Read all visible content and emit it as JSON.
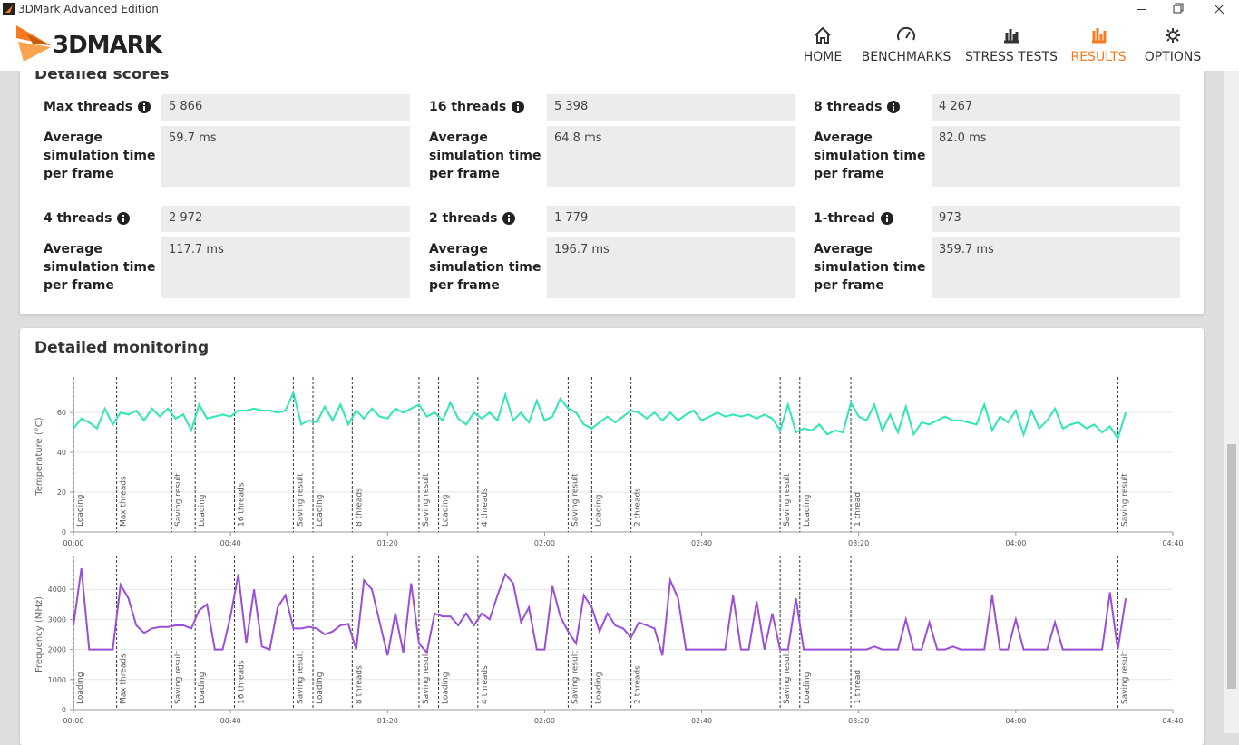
{
  "window": {
    "title": "3DMark Advanced Edition"
  },
  "logo": "3DMARK",
  "nav": [
    "HOME",
    "BENCHMARKS",
    "STRESS TESTS",
    "RESULTS",
    "OPTIONS"
  ],
  "scores": {
    "title": "Detailed scores",
    "items": [
      {
        "label": "Max threads",
        "score": "5 866",
        "time_label": "Average simulation time per frame",
        "time": "59.7 ms"
      },
      {
        "label": "16 threads",
        "score": "5 398",
        "time_label": "Average simulation time per frame",
        "time": "64.8 ms"
      },
      {
        "label": "8 threads",
        "score": "4 267",
        "time_label": "Average simulation time per frame",
        "time": "82.0 ms"
      },
      {
        "label": "4 threads",
        "score": "2 972",
        "time_label": "Average simulation time per frame",
        "time": "117.7 ms"
      },
      {
        "label": "2 threads",
        "score": "1 779",
        "time_label": "Average simulation time per frame",
        "time": "196.7 ms"
      },
      {
        "label": "1-thread",
        "score": "973",
        "time_label": "Average simulation time per frame",
        "time": "359.7 ms"
      }
    ]
  },
  "monitoring_title": "Detailed monitoring",
  "chart_data": [
    {
      "type": "line",
      "y_label": "Temperature (°C)",
      "color": "#2ee6b6",
      "x": [
        0,
        2,
        4,
        6,
        8,
        10,
        12,
        14,
        16,
        18,
        20,
        22,
        24,
        26,
        28,
        30,
        32,
        34,
        36,
        38,
        40,
        42,
        44,
        46,
        48,
        50,
        52,
        54,
        56,
        58,
        60,
        62,
        64,
        66,
        68,
        70,
        72,
        74,
        76,
        78,
        80,
        82,
        84,
        86,
        88,
        90,
        92,
        94,
        96,
        98,
        100,
        102,
        104,
        106,
        108,
        110,
        112,
        114,
        116,
        118,
        120,
        122,
        124,
        126,
        128,
        130,
        132,
        134,
        136,
        138,
        140,
        142,
        144,
        146,
        148,
        150,
        152,
        154,
        156,
        158,
        160,
        162,
        164,
        166,
        168,
        170,
        172,
        174,
        176,
        178,
        180,
        182,
        184,
        186,
        188,
        190,
        192,
        194,
        196,
        198,
        200,
        202,
        204,
        206,
        208,
        210,
        212,
        214,
        216,
        218,
        220,
        222,
        224,
        226,
        228,
        230,
        232,
        234,
        236,
        238,
        240,
        242,
        244,
        246,
        248,
        250,
        252,
        254,
        256,
        258,
        260,
        262,
        264,
        266,
        268
      ],
      "values": [
        52,
        57,
        55,
        52,
        62,
        54,
        60,
        59,
        61,
        56,
        62,
        58,
        62,
        57,
        59,
        51,
        64,
        57,
        58,
        59,
        58,
        61,
        61,
        62,
        61,
        61,
        60,
        61,
        70,
        54,
        56,
        55,
        63,
        56,
        64,
        54,
        61,
        57,
        62,
        58,
        57,
        62,
        60,
        62,
        64,
        58,
        60,
        56,
        65,
        57,
        54,
        60,
        57,
        60,
        56,
        69,
        56,
        60,
        55,
        66,
        56,
        58,
        67,
        62,
        60,
        54,
        52,
        55,
        58,
        55,
        58,
        61,
        60,
        57,
        60,
        56,
        60,
        56,
        59,
        61,
        56,
        58,
        60,
        58,
        59,
        58,
        59,
        57,
        59,
        57,
        51,
        64,
        50,
        52,
        51,
        54,
        49,
        51,
        50,
        65,
        58,
        56,
        64,
        51,
        59,
        50,
        63,
        49,
        55,
        54,
        56,
        58,
        56,
        56,
        55,
        54,
        64,
        51,
        58,
        55,
        61,
        49,
        61,
        52,
        56,
        62,
        52,
        54,
        55,
        52,
        54,
        50,
        53,
        47,
        60
      ],
      "xlim": [
        0,
        280
      ],
      "xticks": [
        {
          "value": 0,
          "label": "00:00"
        },
        {
          "value": 40,
          "label": "00:40"
        },
        {
          "value": 80,
          "label": "01:20"
        },
        {
          "value": 120,
          "label": "02:00"
        },
        {
          "value": 160,
          "label": "02:40"
        },
        {
          "value": 200,
          "label": "03:20"
        },
        {
          "value": 240,
          "label": "04:00"
        },
        {
          "value": 280,
          "label": "04:40"
        }
      ],
      "ylim": [
        0,
        76
      ],
      "yticks": [
        0,
        20,
        40,
        60
      ],
      "grid": true,
      "markers": [
        {
          "x": 0,
          "label": "Loading"
        },
        {
          "x": 11,
          "label": "Max threads"
        },
        {
          "x": 25,
          "label": "Saving result"
        },
        {
          "x": 31,
          "label": "Loading"
        },
        {
          "x": 41,
          "label": "16 threads"
        },
        {
          "x": 56,
          "label": "Saving result"
        },
        {
          "x": 61,
          "label": "Loading"
        },
        {
          "x": 71,
          "label": "8 threads"
        },
        {
          "x": 88,
          "label": "Saving result"
        },
        {
          "x": 93,
          "label": "Loading"
        },
        {
          "x": 103,
          "label": "4 threads"
        },
        {
          "x": 126,
          "label": "Saving result"
        },
        {
          "x": 132,
          "label": "Loading"
        },
        {
          "x": 142,
          "label": "2 threads"
        },
        {
          "x": 180,
          "label": "Saving result"
        },
        {
          "x": 185,
          "label": "Loading"
        },
        {
          "x": 198,
          "label": "1 thread"
        },
        {
          "x": 266,
          "label": "Saving result"
        }
      ]
    },
    {
      "type": "line",
      "y_label": "Frequency (MHz)",
      "color": "#9a4fd8",
      "x": [
        0,
        2,
        4,
        6,
        8,
        10,
        12,
        14,
        16,
        18,
        20,
        22,
        24,
        26,
        28,
        30,
        32,
        34,
        36,
        38,
        40,
        42,
        44,
        46,
        48,
        50,
        52,
        54,
        56,
        58,
        60,
        62,
        64,
        66,
        68,
        70,
        72,
        74,
        76,
        78,
        80,
        82,
        84,
        86,
        88,
        90,
        92,
        94,
        96,
        98,
        100,
        102,
        104,
        106,
        108,
        110,
        112,
        114,
        116,
        118,
        120,
        122,
        124,
        126,
        128,
        130,
        132,
        134,
        136,
        138,
        140,
        142,
        144,
        146,
        148,
        150,
        152,
        154,
        156,
        158,
        160,
        162,
        164,
        166,
        168,
        170,
        172,
        174,
        176,
        178,
        180,
        182,
        184,
        186,
        188,
        190,
        192,
        194,
        196,
        198,
        200,
        202,
        204,
        206,
        208,
        210,
        212,
        214,
        216,
        218,
        220,
        222,
        224,
        226,
        228,
        230,
        232,
        234,
        236,
        238,
        240,
        242,
        244,
        246,
        248,
        250,
        252,
        254,
        256,
        258,
        260,
        262,
        264,
        266,
        268
      ],
      "values": [
        2800,
        4700,
        2000,
        2000,
        2000,
        2000,
        4150,
        3700,
        2800,
        2550,
        2700,
        2750,
        2750,
        2800,
        2800,
        2700,
        3300,
        3500,
        2000,
        2000,
        3100,
        4500,
        2200,
        4000,
        2100,
        2000,
        3400,
        3800,
        2700,
        2700,
        2750,
        2700,
        2500,
        2600,
        2800,
        2850,
        2000,
        4300,
        4000,
        2900,
        1800,
        3200,
        1900,
        4200,
        2200,
        1900,
        3200,
        3100,
        3100,
        2800,
        3200,
        2800,
        3200,
        3000,
        3800,
        4500,
        4200,
        2900,
        3400,
        2000,
        2000,
        4100,
        3100,
        2600,
        2200,
        3800,
        3400,
        2600,
        3200,
        2800,
        2700,
        2400,
        2900,
        2800,
        2700,
        1800,
        4300,
        3700,
        2000,
        2000,
        2000,
        2000,
        2000,
        2000,
        3800,
        2000,
        2000,
        3600,
        2000,
        3200,
        2000,
        2000,
        3700,
        2000,
        2000,
        2000,
        2000,
        2000,
        2000,
        2000,
        2000,
        2000,
        2100,
        2000,
        2000,
        2000,
        3000,
        2000,
        2000,
        2900,
        2000,
        2000,
        2100,
        2000,
        2000,
        2000,
        2000,
        3800,
        2000,
        2000,
        3000,
        2000,
        2000,
        2000,
        2000,
        2900,
        2000,
        2000,
        2000,
        2000,
        2000,
        2000,
        3900,
        2000,
        3700
      ],
      "xlim": [
        0,
        280
      ],
      "xticks": [
        {
          "value": 0,
          "label": "00:00"
        },
        {
          "value": 40,
          "label": "00:40"
        },
        {
          "value": 80,
          "label": "01:20"
        },
        {
          "value": 120,
          "label": "02:00"
        },
        {
          "value": 160,
          "label": "02:40"
        },
        {
          "value": 200,
          "label": "03:20"
        },
        {
          "value": 240,
          "label": "04:00"
        },
        {
          "value": 280,
          "label": "04:40"
        }
      ],
      "ylim": [
        0,
        5000
      ],
      "yticks": [
        0,
        1000,
        2000,
        3000,
        4000
      ],
      "grid": true,
      "markers": [
        {
          "x": 0,
          "label": "Loading"
        },
        {
          "x": 11,
          "label": "Max threads"
        },
        {
          "x": 25,
          "label": "Saving result"
        },
        {
          "x": 31,
          "label": "Loading"
        },
        {
          "x": 41,
          "label": "16 threads"
        },
        {
          "x": 56,
          "label": "Saving result"
        },
        {
          "x": 61,
          "label": "Loading"
        },
        {
          "x": 71,
          "label": "8 threads"
        },
        {
          "x": 88,
          "label": "Saving result"
        },
        {
          "x": 93,
          "label": "Loading"
        },
        {
          "x": 103,
          "label": "4 threads"
        },
        {
          "x": 126,
          "label": "Saving result"
        },
        {
          "x": 132,
          "label": "Loading"
        },
        {
          "x": 142,
          "label": "2 threads"
        },
        {
          "x": 180,
          "label": "Saving result"
        },
        {
          "x": 185,
          "label": "Loading"
        },
        {
          "x": 198,
          "label": "1 thread"
        },
        {
          "x": 266,
          "label": "Saving result"
        }
      ]
    }
  ]
}
